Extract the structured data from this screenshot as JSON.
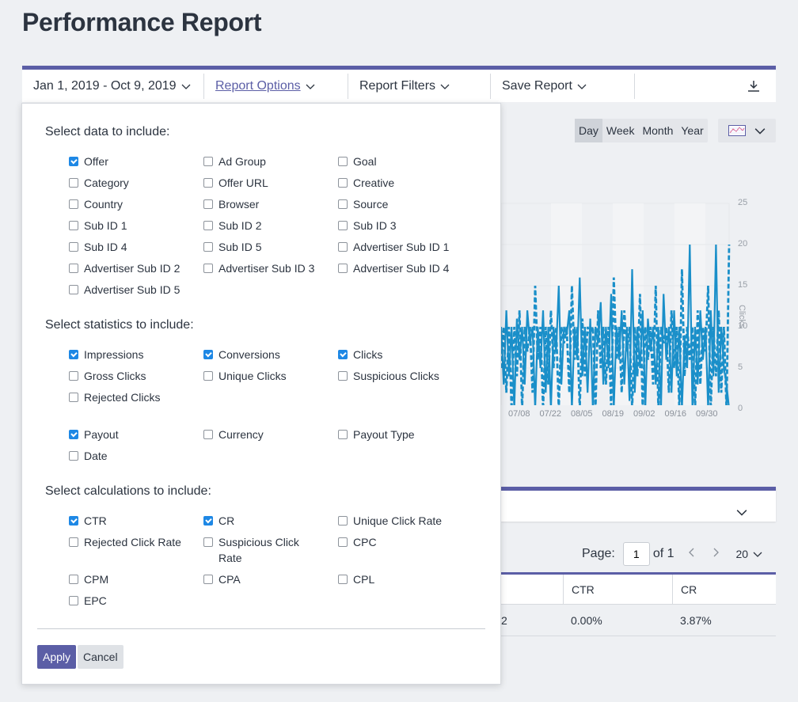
{
  "page": {
    "title": "Performance Report"
  },
  "toolbar": {
    "date_range": "Jan 1, 2019 - Oct 9, 2019",
    "report_options": "Report Options",
    "report_filters": "Report Filters",
    "save_report": "Save Report",
    "download_icon": "download-icon"
  },
  "panel": {
    "data_title": "Select data to include:",
    "data_options": [
      {
        "label": "Offer",
        "checked": true
      },
      {
        "label": "Ad Group",
        "checked": false
      },
      {
        "label": "Goal",
        "checked": false
      },
      {
        "label": "Category",
        "checked": false
      },
      {
        "label": "Offer URL",
        "checked": false
      },
      {
        "label": "Creative",
        "checked": false
      },
      {
        "label": "Country",
        "checked": false
      },
      {
        "label": "Browser",
        "checked": false
      },
      {
        "label": "Source",
        "checked": false
      },
      {
        "label": "Sub ID 1",
        "checked": false
      },
      {
        "label": "Sub ID 2",
        "checked": false
      },
      {
        "label": "Sub ID 3",
        "checked": false
      },
      {
        "label": "Sub ID 4",
        "checked": false
      },
      {
        "label": "Sub ID 5",
        "checked": false
      },
      {
        "label": "Advertiser Sub ID 1",
        "checked": false
      },
      {
        "label": "Advertiser Sub ID 2",
        "checked": false
      },
      {
        "label": "Advertiser Sub ID 3",
        "checked": false
      },
      {
        "label": "Advertiser Sub ID 4",
        "checked": false
      },
      {
        "label": "Advertiser Sub ID 5",
        "checked": false
      }
    ],
    "stats_title": "Select statistics to include:",
    "stats_options": [
      {
        "label": "Impressions",
        "checked": true
      },
      {
        "label": "Conversions",
        "checked": true
      },
      {
        "label": "Clicks",
        "checked": true
      },
      {
        "label": "Gross Clicks",
        "checked": false
      },
      {
        "label": "Unique Clicks",
        "checked": false
      },
      {
        "label": "Suspicious Clicks",
        "checked": false
      },
      {
        "label": "Rejected Clicks",
        "checked": false
      }
    ],
    "payout_options": [
      {
        "label": "Payout",
        "checked": true
      },
      {
        "label": "Currency",
        "checked": false
      },
      {
        "label": "Payout Type",
        "checked": false
      },
      {
        "label": "Date",
        "checked": false
      }
    ],
    "calc_title": "Select calculations to include:",
    "calc_options": [
      {
        "label": "CTR",
        "checked": true
      },
      {
        "label": "CR",
        "checked": true
      },
      {
        "label": "Unique Click Rate",
        "checked": false
      },
      {
        "label": "Rejected Click Rate",
        "checked": false
      },
      {
        "label": "Suspicious Click Rate",
        "checked": false
      },
      {
        "label": "CPC",
        "checked": false
      },
      {
        "label": "CPM",
        "checked": false
      },
      {
        "label": "CPA",
        "checked": false
      },
      {
        "label": "CPL",
        "checked": false
      },
      {
        "label": "EPC",
        "checked": false
      }
    ],
    "apply_label": "Apply",
    "cancel_label": "Cancel"
  },
  "period": {
    "buttons": [
      "Day",
      "Week",
      "Month",
      "Year"
    ],
    "active": "Day"
  },
  "chart_data": {
    "type": "line",
    "ylabel": "Clicks",
    "ylim": [
      0,
      25
    ],
    "y_ticks": [
      "25",
      "20",
      "15",
      "10",
      "5",
      "0"
    ],
    "x_ticks": [
      "07/08",
      "07/22",
      "08/05",
      "08/19",
      "09/02",
      "09/16",
      "09/30"
    ],
    "series": [
      {
        "values": [
          10,
          3,
          12,
          4,
          10,
          0,
          11,
          6,
          10,
          3,
          12,
          8,
          10,
          0,
          10,
          5,
          12,
          2,
          10,
          0,
          10,
          7,
          15,
          3,
          10,
          9,
          12,
          0,
          10,
          6,
          16,
          4,
          10,
          2,
          11,
          0,
          10,
          8,
          13,
          3,
          10,
          5,
          14,
          0,
          10,
          6,
          12,
          3,
          10,
          1,
          17,
          2,
          10,
          5,
          12,
          0,
          11,
          7,
          10,
          3,
          10,
          0,
          14,
          6,
          10,
          2,
          12,
          4,
          10,
          0,
          9,
          5,
          20,
          0,
          10,
          3,
          12,
          6,
          10,
          0,
          12,
          4,
          20,
          2,
          10,
          5,
          3,
          0
        ]
      },
      {
        "values": [
          5,
          10,
          2,
          10,
          0,
          10,
          4,
          12,
          0,
          10,
          7,
          10,
          2,
          15,
          6,
          10,
          0,
          10,
          3,
          12,
          5,
          10,
          0,
          10,
          8,
          10,
          2,
          15,
          6,
          10,
          0,
          11,
          4,
          10,
          9,
          10,
          0,
          12,
          5,
          10,
          3,
          10,
          0,
          16,
          6,
          10,
          2,
          12,
          7,
          10,
          0,
          10,
          4,
          14,
          0,
          10,
          6,
          10,
          3,
          15,
          0,
          10,
          8,
          10,
          2,
          12,
          5,
          10,
          0,
          17,
          4,
          10,
          6,
          10,
          0,
          12,
          3,
          10,
          7,
          15,
          0,
          10,
          4,
          12,
          2,
          10,
          0,
          20
        ]
      }
    ],
    "color": "#1a8fc9"
  },
  "pager": {
    "page_label": "Page:",
    "page_value": "1",
    "of_label": "of 1",
    "page_size": "20"
  },
  "table": {
    "headers": [
      "",
      "CTR",
      "CR"
    ],
    "rows": [
      [
        "2",
        "0.00%",
        "3.87%"
      ]
    ]
  }
}
